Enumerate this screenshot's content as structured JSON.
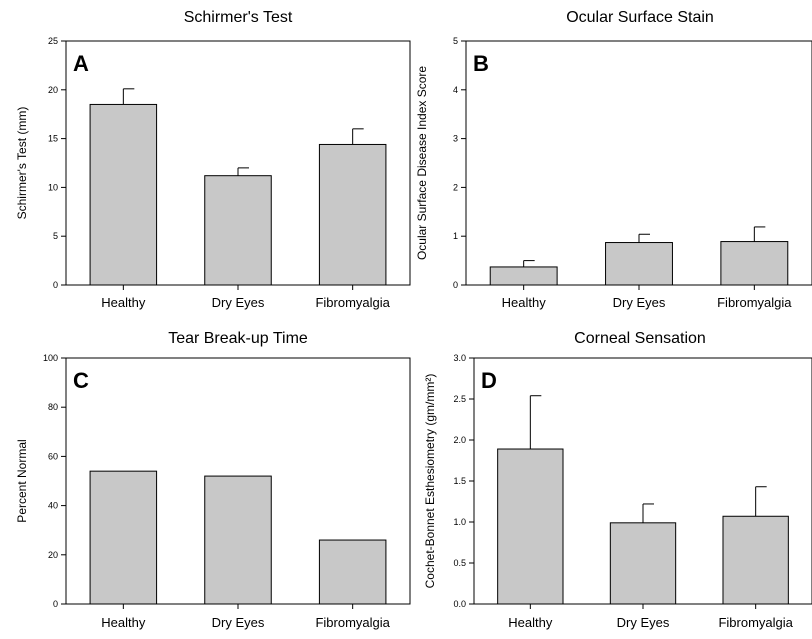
{
  "chart_data": [
    {
      "type": "bar",
      "title": "Schirmer's Test",
      "panel_label": "A",
      "ylabel": "Schirmer's Test (mm)",
      "xlabel": "",
      "categories": [
        "Healthy",
        "Dry Eyes",
        "Fibromyalgia"
      ],
      "values": [
        18.5,
        11.2,
        14.4
      ],
      "error_upper": [
        1.6,
        0.8,
        1.6
      ],
      "ylim": [
        0,
        25
      ],
      "yticks": [
        "0",
        "5",
        "10",
        "15",
        "20",
        "25"
      ],
      "tick_values": [
        0,
        5,
        10,
        15,
        20,
        25
      ],
      "bar_color": "#c8c8c8",
      "grid": false
    },
    {
      "type": "bar",
      "title": "Ocular Surface Stain",
      "panel_label": "B",
      "ylabel": "Ocular Surface Disease Index Score",
      "xlabel": "",
      "categories": [
        "Healthy",
        "Dry Eyes",
        "Fibromyalgia"
      ],
      "values": [
        0.37,
        0.87,
        0.89
      ],
      "error_upper": [
        0.13,
        0.17,
        0.3
      ],
      "ylim": [
        0,
        5
      ],
      "yticks": [
        "0",
        "1",
        "2",
        "3",
        "4",
        "5"
      ],
      "tick_values": [
        0,
        1,
        2,
        3,
        4,
        5
      ],
      "bar_color": "#c8c8c8",
      "grid": false
    },
    {
      "type": "bar",
      "title": "Tear Break-up Time",
      "panel_label": "C",
      "ylabel": "Percent Normal",
      "xlabel": "",
      "categories": [
        "Healthy",
        "Dry Eyes",
        "Fibromyalgia"
      ],
      "values": [
        54,
        52,
        26
      ],
      "error_upper": [
        0,
        0,
        0
      ],
      "ylim": [
        0,
        100
      ],
      "yticks": [
        "0",
        "20",
        "40",
        "60",
        "80",
        "100"
      ],
      "tick_values": [
        0,
        20,
        40,
        60,
        80,
        100
      ],
      "bar_color": "#c8c8c8",
      "grid": false
    },
    {
      "type": "bar",
      "title": "Corneal Sensation",
      "panel_label": "D",
      "ylabel": "Cochet-Bonnet Esthesiometry (gm/mm²)",
      "xlabel": "",
      "categories": [
        "Healthy",
        "Dry Eyes",
        "Fibromyalgia"
      ],
      "values": [
        1.89,
        0.99,
        1.07
      ],
      "error_upper": [
        0.65,
        0.23,
        0.36
      ],
      "ylim": [
        0,
        3
      ],
      "yticks": [
        "0.0",
        "0.5",
        "1.0",
        "1.5",
        "2.0",
        "2.5",
        "3.0"
      ],
      "tick_values": [
        0,
        0.5,
        1,
        1.5,
        2,
        2.5,
        3
      ],
      "bar_color": "#c8c8c8",
      "grid": false
    }
  ]
}
